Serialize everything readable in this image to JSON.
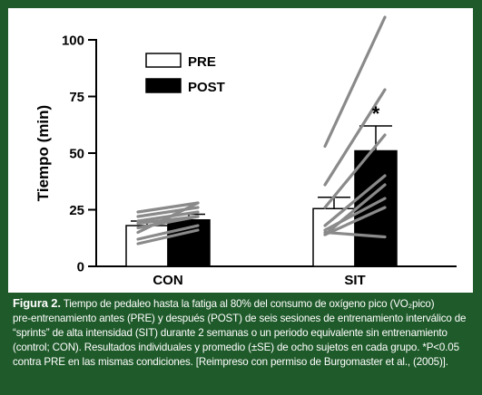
{
  "chart_data": {
    "type": "bar",
    "ylabel": "Tiempo (min)",
    "ylim": [
      0,
      100
    ],
    "yticks": [
      0,
      25,
      50,
      75,
      100
    ],
    "categories": [
      "CON",
      "SIT"
    ],
    "series": [
      {
        "name": "PRE",
        "values": [
          18,
          25.5
        ],
        "error": [
          2,
          5
        ],
        "color": "#ffffff"
      },
      {
        "name": "POST",
        "values": [
          20.5,
          51
        ],
        "error": [
          2.5,
          11
        ],
        "color": "#000000"
      }
    ],
    "individual_lines": {
      "CON": [
        [
          17,
          22
        ],
        [
          15,
          28
        ],
        [
          12,
          18
        ],
        [
          10,
          16
        ],
        [
          22,
          26
        ],
        [
          20,
          24
        ],
        [
          24,
          28
        ],
        [
          19,
          22
        ]
      ],
      "SIT": [
        [
          53,
          110
        ],
        [
          36,
          78
        ],
        [
          26,
          58
        ],
        [
          18,
          40
        ],
        [
          14,
          36
        ],
        [
          15,
          13
        ],
        [
          16,
          30
        ],
        [
          14,
          26
        ]
      ]
    },
    "annotations": [
      "*"
    ],
    "legend_position": "top-left"
  },
  "caption": {
    "figure_label": "Figura 2.",
    "text": " Tiempo de pedaleo hasta la fatiga al 80% del consumo de oxígeno pico (VO₂pico)\npre-entrenamiento antes (PRE) y después (POST) de seis sesiones de entrenamiento interválico de\n“sprints” de alta intensidad (SIT) durante 2 semanas o un periodo equivalente sin entrenamiento\n(control; CON). Resultados individuales y promedio (±SE) de ocho sujetos en cada grupo. *P<0.05\ncontra PRE en las mismas condiciones. [Reimpreso con permiso de Burgomaster et al., (2005)]."
  }
}
